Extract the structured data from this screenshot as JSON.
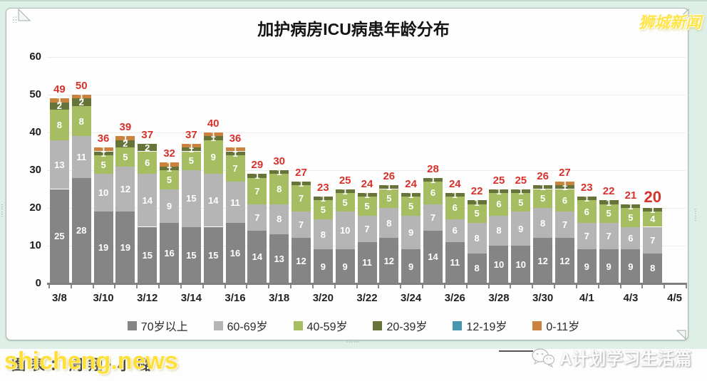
{
  "title": "加护病房ICU病患年龄分布",
  "logo": "狮城新闻",
  "watermarks": {
    "credit": "图表：周翔·小璐",
    "site": "shicheng.news",
    "channel": "A计划学习生活篇"
  },
  "colors": {
    "mint": "#ddefe6",
    "total_label": "#d7312c",
    "grid": "#ececec",
    "axis": "#7e7e7e"
  },
  "chart_data": {
    "type": "bar",
    "stacked": true,
    "title": "加护病房ICU病患年龄分布",
    "xlabel": "",
    "ylabel": "",
    "ylim": [
      0,
      60
    ],
    "y_ticks": [
      0,
      10,
      20,
      30,
      40,
      50,
      60
    ],
    "grid": true,
    "legend_position": "bottom",
    "x_tick_labels": [
      "3/8",
      "3/10",
      "3/12",
      "3/14",
      "3/16",
      "3/18",
      "3/20",
      "3/22",
      "3/24",
      "3/26",
      "3/28",
      "3/30",
      "4/1",
      "4/3",
      "4/5"
    ],
    "categories": [
      "3/8",
      "3/9",
      "3/10",
      "3/11",
      "3/12",
      "3/13",
      "3/14",
      "3/15",
      "3/16",
      "3/17",
      "3/18",
      "3/19",
      "3/20",
      "3/21",
      "3/22",
      "3/23",
      "3/24",
      "3/25",
      "3/26",
      "3/27",
      "3/28",
      "3/29",
      "3/30",
      "3/31",
      "4/1",
      "4/2",
      "4/3",
      "4/4"
    ],
    "empty_trailing_category": "4/5",
    "series": [
      {
        "name": "70岁以上",
        "color": "#858585",
        "values": [
          25,
          28,
          19,
          19,
          15,
          16,
          15,
          15,
          16,
          14,
          13,
          12,
          9,
          9,
          11,
          12,
          9,
          14,
          11,
          8,
          10,
          10,
          12,
          12,
          9,
          9,
          9,
          8
        ]
      },
      {
        "name": "60-69岁",
        "color": "#b5b5b5",
        "values": [
          13,
          11,
          10,
          12,
          14,
          9,
          15,
          14,
          11,
          7,
          8,
          7,
          8,
          10,
          7,
          8,
          9,
          7,
          6,
          8,
          8,
          9,
          8,
          7,
          7,
          7,
          6,
          7
        ]
      },
      {
        "name": "40-59岁",
        "color": "#a6bd62",
        "values": [
          8,
          8,
          5,
          5,
          6,
          5,
          5,
          9,
          7,
          7,
          8,
          7,
          5,
          5,
          5,
          5,
          5,
          6,
          6,
          5,
          6,
          5,
          5,
          6,
          6,
          5,
          5,
          4
        ]
      },
      {
        "name": "20-39岁",
        "color": "#66743a",
        "values": [
          2,
          2,
          1,
          2,
          2,
          1,
          1,
          1,
          1,
          1,
          1,
          1,
          1,
          1,
          1,
          1,
          1,
          1,
          1,
          1,
          1,
          1,
          1,
          1,
          1,
          1,
          1,
          1
        ]
      },
      {
        "name": "12-19岁",
        "color": "#4796ad",
        "values": [
          0,
          0,
          0,
          0,
          0,
          0,
          0,
          0,
          0,
          0,
          0,
          0,
          0,
          0,
          0,
          0,
          0,
          0,
          0,
          0,
          0,
          0,
          0,
          0,
          0,
          0,
          0,
          0
        ]
      },
      {
        "name": "0-11岁",
        "color": "#cc823f",
        "values": [
          1,
          1,
          1,
          1,
          0,
          1,
          1,
          1,
          1,
          0,
          0,
          0,
          0,
          0,
          0,
          0,
          0,
          0,
          0,
          0,
          0,
          0,
          0,
          1,
          0,
          0,
          0,
          0
        ]
      }
    ],
    "totals": [
      49,
      50,
      36,
      39,
      37,
      32,
      37,
      40,
      36,
      29,
      30,
      27,
      23,
      25,
      24,
      26,
      24,
      28,
      24,
      22,
      25,
      25,
      26,
      27,
      23,
      22,
      21,
      20
    ]
  }
}
